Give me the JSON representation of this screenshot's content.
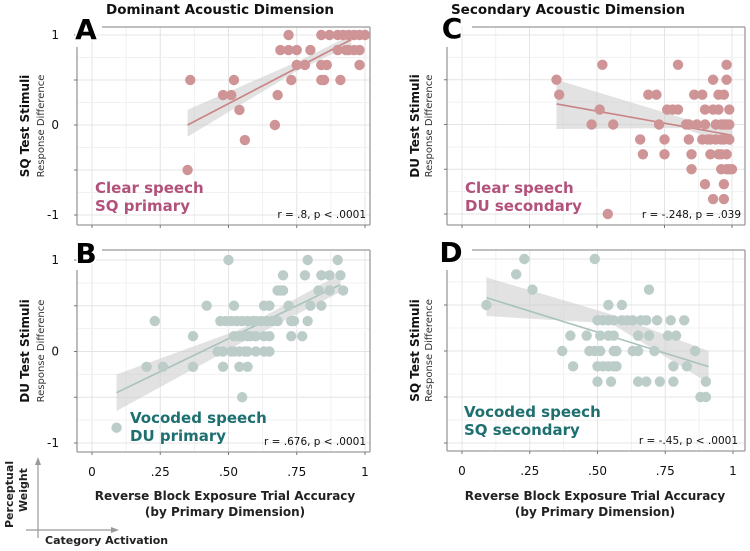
{
  "column_titles": [
    "Dominant Acoustic Dimension",
    "Secondary Acoustic Dimension"
  ],
  "x_axis": {
    "title_line1": "Reverse Block Exposure Trial Accuracy",
    "title_line2": "(by Primary Dimension)",
    "tick_labels": [
      "0",
      ".25",
      ".50",
      ".75",
      "1"
    ]
  },
  "inset": {
    "y_label_line1": "Perceptual",
    "y_label_line2": "Weight",
    "x_label": "Category Activation"
  },
  "colors": {
    "clear_dot": "#cf9496",
    "clear_line": "#c98486",
    "clear_text": "#b2517a",
    "voc_dot": "#bccdc9",
    "voc_line": "#a8c2bc",
    "voc_text": "#1e6f70",
    "band": "#cfcfcf"
  },
  "chart_data": [
    {
      "id": "A",
      "type": "scatter",
      "letter": "A",
      "ylabel_main": "SQ Test Stimuli",
      "ylabel_sub": "Response Difference",
      "ytick_labels": [
        "1",
        "0",
        "-1"
      ],
      "show_yticks": true,
      "xlim": [
        0,
        1
      ],
      "ylim": [
        -1,
        1
      ],
      "grid": true,
      "condition_line1": "Clear speech",
      "condition_line2": "SQ primary",
      "style": "clear",
      "stat": "r = .8, p < .0001",
      "points": [
        [
          0.72,
          1
        ],
        [
          0.84,
          1
        ],
        [
          0.87,
          1
        ],
        [
          0.9,
          1
        ],
        [
          0.92,
          1
        ],
        [
          0.94,
          1
        ],
        [
          0.96,
          1
        ],
        [
          0.98,
          1
        ],
        [
          1.0,
          1
        ],
        [
          0.69,
          0.833
        ],
        [
          0.72,
          0.833
        ],
        [
          0.75,
          0.833
        ],
        [
          0.8,
          0.833
        ],
        [
          0.9,
          0.833
        ],
        [
          0.93,
          0.833
        ],
        [
          0.94,
          0.833
        ],
        [
          0.96,
          0.833
        ],
        [
          0.98,
          0.833
        ],
        [
          0.75,
          0.667
        ],
        [
          0.78,
          0.667
        ],
        [
          0.84,
          0.667
        ],
        [
          0.86,
          0.667
        ],
        [
          0.98,
          0.667
        ],
        [
          0.36,
          0.5
        ],
        [
          0.52,
          0.5
        ],
        [
          0.73,
          0.5
        ],
        [
          0.84,
          0.5
        ],
        [
          0.85,
          0.5
        ],
        [
          0.91,
          0.5
        ],
        [
          0.48,
          0.333
        ],
        [
          0.51,
          0.333
        ],
        [
          0.68,
          0.333
        ],
        [
          0.54,
          0.167
        ],
        [
          0.67,
          0
        ],
        [
          0.56,
          -0.167
        ],
        [
          0.35,
          -0.5
        ]
      ],
      "fit": {
        "x": [
          0.35,
          0.95
        ],
        "y": [
          0.0,
          0.95
        ]
      },
      "band": {
        "x": [
          0.35,
          0.75,
          0.95
        ],
        "lo": [
          -0.13,
          0.6,
          0.89
        ],
        "hi": [
          0.17,
          0.7,
          1.0
        ]
      }
    },
    {
      "id": "B",
      "type": "scatter",
      "letter": "B",
      "ylabel_main": "DU Test Stimuli",
      "ylabel_sub": "Response Difference",
      "ytick_labels": [
        "1",
        "0",
        "-1"
      ],
      "show_yticks": true,
      "xlim": [
        0,
        1
      ],
      "ylim": [
        -1,
        1
      ],
      "grid": true,
      "condition_line1": "Vocoded speech",
      "condition_line2": "DU primary",
      "style": "voc",
      "stat": "r = .676, p < .0001",
      "points": [
        [
          0.5,
          1
        ],
        [
          0.79,
          1
        ],
        [
          0.9,
          1
        ],
        [
          0.7,
          0.833
        ],
        [
          0.78,
          0.833
        ],
        [
          0.84,
          0.833
        ],
        [
          0.87,
          0.833
        ],
        [
          0.91,
          0.833
        ],
        [
          0.68,
          0.667
        ],
        [
          0.69,
          0.667
        ],
        [
          0.7,
          0.667
        ],
        [
          0.83,
          0.667
        ],
        [
          0.87,
          0.667
        ],
        [
          0.92,
          0.667
        ],
        [
          0.42,
          0.5
        ],
        [
          0.52,
          0.5
        ],
        [
          0.63,
          0.5
        ],
        [
          0.65,
          0.5
        ],
        [
          0.72,
          0.5
        ],
        [
          0.8,
          0.5
        ],
        [
          0.84,
          0.5
        ],
        [
          0.23,
          0.333
        ],
        [
          0.47,
          0.333
        ],
        [
          0.49,
          0.333
        ],
        [
          0.51,
          0.333
        ],
        [
          0.53,
          0.333
        ],
        [
          0.55,
          0.333
        ],
        [
          0.57,
          0.333
        ],
        [
          0.59,
          0.333
        ],
        [
          0.6,
          0.333
        ],
        [
          0.62,
          0.333
        ],
        [
          0.64,
          0.333
        ],
        [
          0.66,
          0.333
        ],
        [
          0.68,
          0.333
        ],
        [
          0.73,
          0.333
        ],
        [
          0.74,
          0.333
        ],
        [
          0.79,
          0.333
        ],
        [
          0.37,
          0.167
        ],
        [
          0.52,
          0.167
        ],
        [
          0.54,
          0.167
        ],
        [
          0.55,
          0.167
        ],
        [
          0.57,
          0.167
        ],
        [
          0.58,
          0.167
        ],
        [
          0.6,
          0.167
        ],
        [
          0.63,
          0.167
        ],
        [
          0.65,
          0.167
        ],
        [
          0.73,
          0.167
        ],
        [
          0.77,
          0.167
        ],
        [
          0.46,
          0
        ],
        [
          0.48,
          0
        ],
        [
          0.51,
          0
        ],
        [
          0.52,
          0
        ],
        [
          0.54,
          0
        ],
        [
          0.56,
          0
        ],
        [
          0.57,
          0
        ],
        [
          0.6,
          0
        ],
        [
          0.63,
          0
        ],
        [
          0.65,
          0
        ],
        [
          0.2,
          -0.167
        ],
        [
          0.26,
          -0.167
        ],
        [
          0.37,
          -0.167
        ],
        [
          0.48,
          -0.167
        ],
        [
          0.54,
          -0.167
        ],
        [
          0.57,
          -0.167
        ],
        [
          0.55,
          -0.5
        ],
        [
          0.09,
          -0.833
        ]
      ],
      "fit": {
        "x": [
          0.09,
          0.91
        ],
        "y": [
          -0.45,
          0.73
        ]
      },
      "band": {
        "x": [
          0.09,
          0.55,
          0.91
        ],
        "lo": [
          -0.65,
          0.1,
          0.65
        ],
        "hi": [
          -0.25,
          0.25,
          0.85
        ]
      }
    },
    {
      "id": "C",
      "type": "scatter",
      "letter": "C",
      "ylabel_main": "DU Test Stimuli",
      "ylabel_sub": "Response Difference",
      "ytick_labels": [],
      "show_yticks": false,
      "xlim": [
        0,
        1
      ],
      "ylim": [
        -1,
        1
      ],
      "grid": true,
      "condition_line1": "Clear speech",
      "condition_line2": "DU secondary",
      "style": "clear",
      "stat": "r = -.248, p = .039",
      "points": [
        [
          0.52,
          0.667
        ],
        [
          0.8,
          0.667
        ],
        [
          0.98,
          0.667
        ],
        [
          0.35,
          0.5
        ],
        [
          0.93,
          0.5
        ],
        [
          0.98,
          0.5
        ],
        [
          0.36,
          0.333
        ],
        [
          0.69,
          0.333
        ],
        [
          0.72,
          0.333
        ],
        [
          0.86,
          0.333
        ],
        [
          0.89,
          0.333
        ],
        [
          0.95,
          0.333
        ],
        [
          0.97,
          0.333
        ],
        [
          0.51,
          0.167
        ],
        [
          0.76,
          0.167
        ],
        [
          0.78,
          0.167
        ],
        [
          0.8,
          0.167
        ],
        [
          0.9,
          0.167
        ],
        [
          0.93,
          0.167
        ],
        [
          0.95,
          0.167
        ],
        [
          0.99,
          0.167
        ],
        [
          0.48,
          0
        ],
        [
          0.56,
          0
        ],
        [
          0.73,
          0
        ],
        [
          0.83,
          0
        ],
        [
          0.84,
          0
        ],
        [
          0.87,
          0
        ],
        [
          0.9,
          0
        ],
        [
          0.94,
          0
        ],
        [
          0.96,
          0
        ],
        [
          0.97,
          0
        ],
        [
          0.98,
          0
        ],
        [
          0.99,
          0
        ],
        [
          0.66,
          -0.167
        ],
        [
          0.75,
          -0.167
        ],
        [
          0.84,
          -0.167
        ],
        [
          0.89,
          -0.167
        ],
        [
          0.91,
          -0.167
        ],
        [
          0.92,
          -0.167
        ],
        [
          0.94,
          -0.167
        ],
        [
          0.96,
          -0.167
        ],
        [
          0.97,
          -0.167
        ],
        [
          0.99,
          -0.167
        ],
        [
          0.67,
          -0.333
        ],
        [
          0.75,
          -0.333
        ],
        [
          0.85,
          -0.333
        ],
        [
          0.92,
          -0.333
        ],
        [
          0.95,
          -0.333
        ],
        [
          0.96,
          -0.333
        ],
        [
          0.98,
          -0.333
        ],
        [
          0.85,
          -0.5
        ],
        [
          0.96,
          -0.5
        ],
        [
          0.98,
          -0.5
        ],
        [
          0.99,
          -0.5
        ],
        [
          1.0,
          -0.5
        ],
        [
          0.9,
          -0.667
        ],
        [
          0.97,
          -0.667
        ],
        [
          0.93,
          -0.833
        ],
        [
          0.97,
          -0.833
        ],
        [
          0.54,
          -1
        ]
      ],
      "fit": {
        "x": [
          0.35,
          1.0
        ],
        "y": [
          0.23,
          -0.12
        ]
      },
      "band": {
        "x": [
          0.35,
          0.82,
          1.0
        ],
        "lo": [
          -0.05,
          -0.04,
          -0.24
        ],
        "hi": [
          0.5,
          0.07,
          -0.03
        ]
      }
    },
    {
      "id": "D",
      "type": "scatter",
      "letter": "D",
      "ylabel_main": "SQ Test Stimuli",
      "ylabel_sub": "Response Difference",
      "ytick_labels": [],
      "show_yticks": false,
      "xlim": [
        0,
        1
      ],
      "ylim": [
        -1,
        1
      ],
      "grid": true,
      "condition_line1": "Vocoded speech",
      "condition_line2": "SQ secondary",
      "style": "voc",
      "stat": "r = -.45, p < .0001",
      "points": [
        [
          0.23,
          1
        ],
        [
          0.49,
          1
        ],
        [
          0.2,
          0.833
        ],
        [
          0.26,
          0.667
        ],
        [
          0.69,
          0.667
        ],
        [
          0.09,
          0.5
        ],
        [
          0.54,
          0.5
        ],
        [
          0.59,
          0.5
        ],
        [
          0.5,
          0.333
        ],
        [
          0.52,
          0.333
        ],
        [
          0.54,
          0.333
        ],
        [
          0.56,
          0.333
        ],
        [
          0.59,
          0.333
        ],
        [
          0.61,
          0.333
        ],
        [
          0.63,
          0.333
        ],
        [
          0.66,
          0.333
        ],
        [
          0.68,
          0.333
        ],
        [
          0.72,
          0.333
        ],
        [
          0.77,
          0.333
        ],
        [
          0.82,
          0.333
        ],
        [
          0.4,
          0.167
        ],
        [
          0.46,
          0.167
        ],
        [
          0.51,
          0.167
        ],
        [
          0.54,
          0.167
        ],
        [
          0.56,
          0.167
        ],
        [
          0.65,
          0.167
        ],
        [
          0.69,
          0.167
        ],
        [
          0.76,
          0.167
        ],
        [
          0.79,
          0.167
        ],
        [
          0.37,
          0
        ],
        [
          0.47,
          0
        ],
        [
          0.49,
          0
        ],
        [
          0.51,
          0
        ],
        [
          0.56,
          0
        ],
        [
          0.57,
          0
        ],
        [
          0.63,
          0
        ],
        [
          0.65,
          0
        ],
        [
          0.71,
          0
        ],
        [
          0.86,
          0
        ],
        [
          0.41,
          -0.167
        ],
        [
          0.5,
          -0.167
        ],
        [
          0.52,
          -0.167
        ],
        [
          0.54,
          -0.167
        ],
        [
          0.56,
          -0.167
        ],
        [
          0.57,
          -0.167
        ],
        [
          0.78,
          -0.167
        ],
        [
          0.83,
          -0.167
        ],
        [
          0.5,
          -0.333
        ],
        [
          0.55,
          -0.333
        ],
        [
          0.65,
          -0.333
        ],
        [
          0.68,
          -0.333
        ],
        [
          0.73,
          -0.333
        ],
        [
          0.78,
          -0.333
        ],
        [
          0.9,
          -0.333
        ],
        [
          0.88,
          -0.5
        ],
        [
          0.9,
          -0.5
        ]
      ],
      "fit": {
        "x": [
          0.09,
          0.91
        ],
        "y": [
          0.58,
          -0.17
        ]
      },
      "band": {
        "x": [
          0.09,
          0.55,
          0.91
        ],
        "lo": [
          0.38,
          0.3,
          -0.35
        ],
        "hi": [
          0.8,
          0.4,
          0.0
        ]
      }
    }
  ]
}
